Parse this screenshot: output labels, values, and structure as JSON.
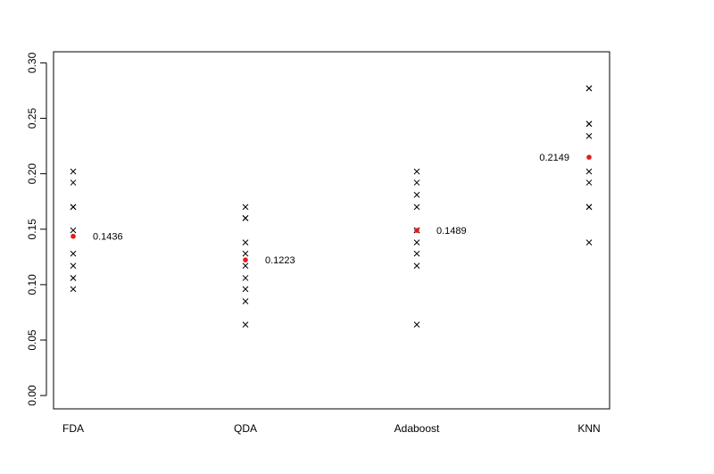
{
  "chart_data": {
    "type": "scatter",
    "title": "",
    "xlabel": "",
    "ylabel": "",
    "categories": [
      "FDA",
      "QDA",
      "Adaboost",
      "KNN"
    ],
    "ylim": [
      -0.012,
      0.31
    ],
    "y_ticks": [
      0.0,
      0.05,
      0.1,
      0.15,
      0.2,
      0.25,
      0.3
    ],
    "y_tick_labels": [
      "0.00",
      "0.05",
      "0.10",
      "0.15",
      "0.20",
      "0.25",
      "0.30"
    ],
    "grid": false,
    "legend": "none",
    "point_color": "#000000",
    "mean_color": "#e41a1c",
    "series": [
      {
        "category": "FDA",
        "values": [
          0.202,
          0.192,
          0.17,
          0.17,
          0.149,
          0.128,
          0.117,
          0.106,
          0.106,
          0.096
        ],
        "mean": 0.1436,
        "mean_label": "0.1436",
        "label_side": "right"
      },
      {
        "category": "QDA",
        "values": [
          0.17,
          0.16,
          0.16,
          0.138,
          0.128,
          0.117,
          0.106,
          0.096,
          0.085,
          0.064
        ],
        "mean": 0.1223,
        "mean_label": "0.1223",
        "label_side": "right"
      },
      {
        "category": "Adaboost",
        "values": [
          0.202,
          0.192,
          0.181,
          0.17,
          0.149,
          0.149,
          0.138,
          0.128,
          0.117,
          0.064
        ],
        "mean": 0.1489,
        "mean_label": "0.1489",
        "label_side": "right"
      },
      {
        "category": "KNN",
        "values": [
          0.277,
          0.277,
          0.245,
          0.245,
          0.234,
          0.202,
          0.192,
          0.17,
          0.17,
          0.138
        ],
        "mean": 0.2149,
        "mean_label": "0.2149",
        "label_side": "left"
      }
    ]
  }
}
